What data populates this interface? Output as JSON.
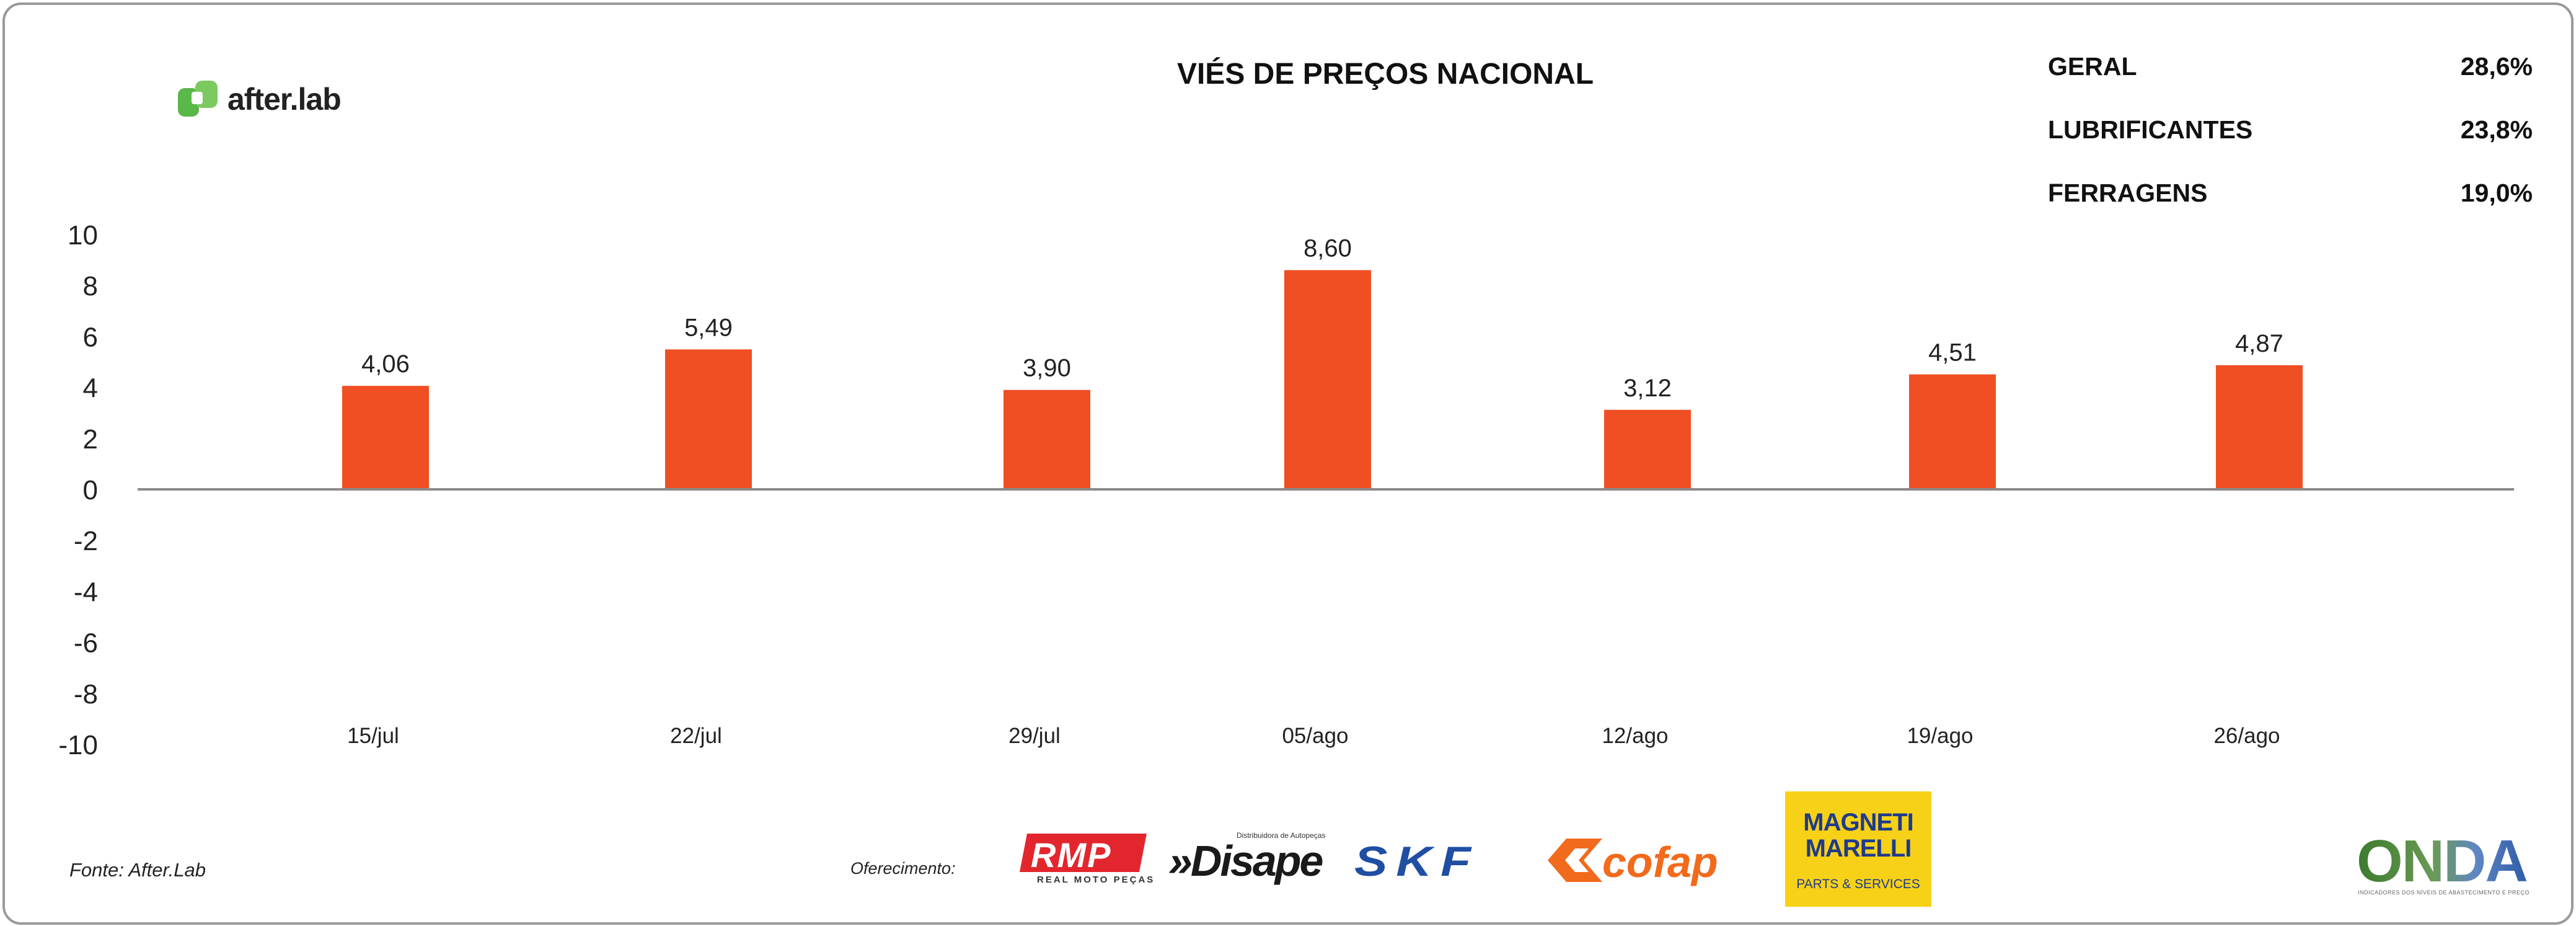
{
  "brand": {
    "name": "after.lab",
    "accent": "#5ab74a"
  },
  "title": "VIÉS DE PREÇOS NACIONAL",
  "stats": [
    {
      "label": "GERAL",
      "value": "28,6%"
    },
    {
      "label": "LUBRIFICANTES",
      "value": "23,8%"
    },
    {
      "label": "FERRAGENS",
      "value": "19,0%"
    }
  ],
  "chart_data": {
    "type": "bar",
    "categories": [
      "15/jul",
      "22/jul",
      "29/jul",
      "05/ago",
      "12/ago",
      "19/ago",
      "26/ago"
    ],
    "values": [
      4.06,
      5.49,
      3.9,
      8.6,
      3.12,
      4.51,
      4.87
    ],
    "data_labels": [
      "4,06",
      "5,49",
      "3,90",
      "8,60",
      "3,12",
      "4,51",
      "4,87"
    ],
    "ylim": [
      -10,
      10
    ],
    "yticks": [
      10,
      8,
      6,
      4,
      2,
      0,
      -2,
      -4,
      -6,
      -8,
      -10
    ],
    "bar_color": "#f04e23",
    "axis_color": "#8a8a8a",
    "grid": false,
    "legend": "none",
    "xlabel": "",
    "ylabel": ""
  },
  "footer": {
    "source": "Fonte: After.Lab",
    "offer_label": "Oferecimento:",
    "sponsors": {
      "rmp": {
        "name": "RMP",
        "tagline": "REAL MOTO PEÇAS",
        "color": "#e3262e"
      },
      "disape": {
        "name": "»Disape",
        "tagline": "Distribuidora de Autopeças",
        "color": "#1a1a1a"
      },
      "skf": {
        "name": "SKF",
        "color": "#1f4ea3"
      },
      "cofap": {
        "name": "cofap",
        "color": "#f26a1b"
      },
      "magneti": {
        "line1": "MAGNETI",
        "line2": "MARELLI",
        "tagline": "PARTS & SERVICES",
        "bg": "#f7d117",
        "color": "#1f3b8c"
      }
    },
    "onda": {
      "name": "ONDA",
      "tagline": "INDICADORES DOS NÍVEIS DE ABASTECIMENTO E PREÇO"
    }
  }
}
